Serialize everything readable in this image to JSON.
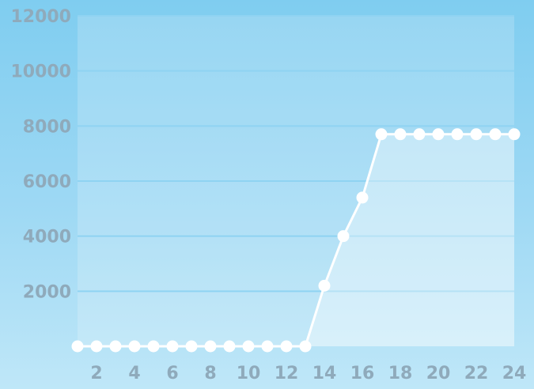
{
  "chart_data": {
    "type": "area",
    "title": "",
    "xlabel": "",
    "ylabel": "",
    "x": [
      1,
      2,
      3,
      4,
      5,
      6,
      7,
      8,
      9,
      10,
      11,
      12,
      13,
      14,
      15,
      16,
      17,
      18,
      19,
      20,
      21,
      22,
      23,
      24
    ],
    "series": [
      {
        "values": [
          0,
          0,
          0,
          0,
          0,
          0,
          0,
          0,
          0,
          0,
          0,
          0,
          0,
          2200,
          4000,
          5400,
          7700,
          7700,
          7700,
          7700,
          7700,
          7700,
          7700,
          7700
        ]
      }
    ],
    "xlim": [
      1,
      24
    ],
    "ylim": [
      0,
      12000
    ],
    "x_ticks": [
      "2",
      "4",
      "6",
      "8",
      "10",
      "12",
      "14",
      "16",
      "18",
      "20",
      "22",
      "24"
    ],
    "y_ticks": [
      "2000",
      "4000",
      "6000",
      "8000",
      "10000",
      "12000"
    ],
    "grid": true,
    "legend": "none",
    "colors": {
      "background_top": "#7fcdf0",
      "background_bottom": "#bfe7f8",
      "plot_fill": "#ffffff",
      "line": "#ffffff",
      "point": "#ffffff",
      "grid": "#8fd3f2",
      "tick_text": "#8faabb"
    }
  }
}
